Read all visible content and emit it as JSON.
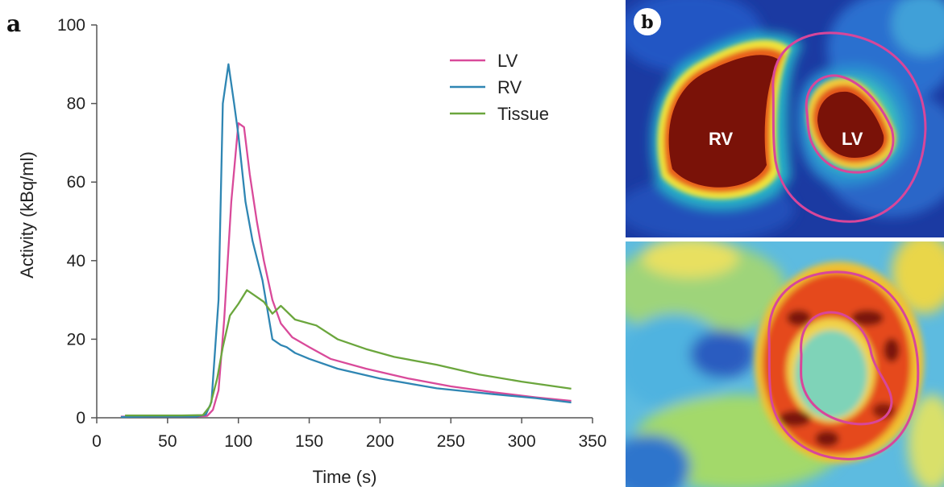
{
  "panel_a_label": "a",
  "panel_b_label": "b",
  "chart_data": {
    "type": "line",
    "xlabel": "Time (s)",
    "ylabel": "Activity (kBq/ml)",
    "xlim": [
      0,
      350
    ],
    "ylim": [
      0,
      100
    ],
    "xticks": [
      0,
      50,
      100,
      150,
      200,
      250,
      300,
      350
    ],
    "yticks": [
      0,
      20,
      40,
      60,
      80,
      100
    ],
    "grid": false,
    "legend_position": "top-right",
    "series": [
      {
        "name": "LV",
        "color": "#d94a9a",
        "points": [
          [
            17,
            0.3
          ],
          [
            40,
            0.3
          ],
          [
            70,
            0.3
          ],
          [
            78,
            0.5
          ],
          [
            82,
            2
          ],
          [
            86,
            7
          ],
          [
            90,
            25
          ],
          [
            95,
            55
          ],
          [
            100,
            75
          ],
          [
            104,
            74
          ],
          [
            108,
            62
          ],
          [
            113,
            50
          ],
          [
            118,
            40
          ],
          [
            124,
            30
          ],
          [
            130,
            24
          ],
          [
            138,
            20.5
          ],
          [
            150,
            18
          ],
          [
            165,
            15
          ],
          [
            190,
            12.5
          ],
          [
            220,
            10
          ],
          [
            250,
            8
          ],
          [
            280,
            6.5
          ],
          [
            310,
            5.2
          ],
          [
            335,
            4.3
          ]
        ]
      },
      {
        "name": "RV",
        "color": "#2f86b3",
        "points": [
          [
            17,
            0.2
          ],
          [
            40,
            0.3
          ],
          [
            70,
            0.3
          ],
          [
            77,
            0.8
          ],
          [
            81,
            4
          ],
          [
            86,
            30
          ],
          [
            89,
            80
          ],
          [
            93,
            90
          ],
          [
            97,
            80
          ],
          [
            100,
            72
          ],
          [
            105,
            55
          ],
          [
            110,
            45
          ],
          [
            117,
            35
          ],
          [
            124,
            20
          ],
          [
            130,
            18.5
          ],
          [
            134,
            18
          ],
          [
            140,
            16.5
          ],
          [
            150,
            15
          ],
          [
            170,
            12.5
          ],
          [
            200,
            10
          ],
          [
            240,
            7.5
          ],
          [
            280,
            6
          ],
          [
            310,
            5
          ],
          [
            335,
            3.9
          ]
        ]
      },
      {
        "name": "Tissue",
        "color": "#6ba63d",
        "points": [
          [
            20,
            0.6
          ],
          [
            60,
            0.6
          ],
          [
            75,
            0.7
          ],
          [
            80,
            3
          ],
          [
            85,
            10
          ],
          [
            89,
            18
          ],
          [
            94,
            26
          ],
          [
            100,
            29
          ],
          [
            106,
            32.5
          ],
          [
            112,
            31
          ],
          [
            118,
            29.5
          ],
          [
            124,
            26.5
          ],
          [
            130,
            28.5
          ],
          [
            140,
            25
          ],
          [
            155,
            23.5
          ],
          [
            170,
            20
          ],
          [
            190,
            17.5
          ],
          [
            210,
            15.5
          ],
          [
            240,
            13.5
          ],
          [
            270,
            11
          ],
          [
            300,
            9.2
          ],
          [
            335,
            7.4
          ]
        ]
      }
    ]
  },
  "image_labels": {
    "rv": "RV",
    "lv": "LV"
  },
  "colors": {
    "roi_outline": "#d8469a",
    "background_blue": "#1d3ea8",
    "blood_pool": "#7a1208"
  }
}
